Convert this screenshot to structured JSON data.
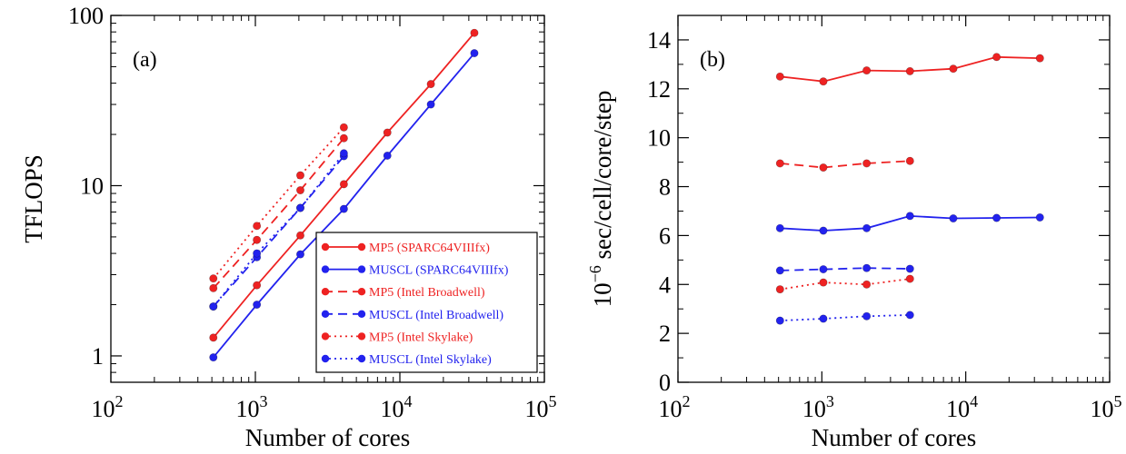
{
  "colors": {
    "mp5": "#ee2222",
    "muscl": "#2222ee",
    "frame": "#000000"
  },
  "chart_data": [
    {
      "type": "line",
      "xscale": "log",
      "yscale": "log",
      "panel_label": "(a)",
      "xlabel": "Number of cores",
      "ylabel": "TFLOPS",
      "xlim": [
        100,
        100000
      ],
      "ylim": [
        0.7,
        100
      ],
      "xticks": [
        {
          "value": 100,
          "base": "10",
          "exp": "2"
        },
        {
          "value": 1000,
          "base": "10",
          "exp": "3"
        },
        {
          "value": 10000,
          "base": "10",
          "exp": "4"
        },
        {
          "value": 100000,
          "base": "10",
          "exp": "5"
        }
      ],
      "yticks": [
        {
          "value": 1,
          "label": "1"
        },
        {
          "value": 10,
          "label": "10"
        },
        {
          "value": 100,
          "label": "100"
        }
      ],
      "legend_position": "bottom-right",
      "series": [
        {
          "name": "MP5 (SPARC64VIIIfx)",
          "color": "#ee2222",
          "style": "solid",
          "x": [
            512,
            1024,
            2048,
            4096,
            8192,
            16384,
            32768
          ],
          "y": [
            1.28,
            2.6,
            5.1,
            10.2,
            20.5,
            39.5,
            79
          ]
        },
        {
          "name": "MUSCL (SPARC64VIIIfx)",
          "color": "#2222ee",
          "style": "solid",
          "x": [
            512,
            1024,
            2048,
            4096,
            8192,
            16384,
            32768
          ],
          "y": [
            0.98,
            2.0,
            3.95,
            7.3,
            15.0,
            30.0,
            60
          ]
        },
        {
          "name": "MP5 (Intel Broadwell)",
          "color": "#ee2222",
          "style": "dashed",
          "x": [
            512,
            1024,
            2048,
            4096
          ],
          "y": [
            2.5,
            4.8,
            9.4,
            19
          ]
        },
        {
          "name": "MUSCL (Intel Broadwell)",
          "color": "#2222ee",
          "style": "dashed",
          "x": [
            512,
            1024,
            2048,
            4096
          ],
          "y": [
            1.95,
            3.8,
            7.4,
            14.9
          ]
        },
        {
          "name": "MP5 (Intel Skylake)",
          "color": "#ee2222",
          "style": "dotted",
          "x": [
            512,
            1024,
            2048,
            4096
          ],
          "y": [
            2.85,
            5.8,
            11.5,
            22
          ]
        },
        {
          "name": "MUSCL (Intel Skylake)",
          "color": "#2222ee",
          "style": "dotted",
          "x": [
            512,
            1024,
            2048,
            4096
          ],
          "y": [
            1.95,
            4.0,
            7.4,
            15.5
          ]
        }
      ]
    },
    {
      "type": "line",
      "xscale": "log",
      "yscale": "linear",
      "panel_label": "(b)",
      "xlabel": "Number of cores",
      "ylabel_base": "10",
      "ylabel_exp": "−6",
      "ylabel_rest": " sec/cell/core/step",
      "xlim": [
        100,
        100000
      ],
      "ylim": [
        0,
        15
      ],
      "xticks": [
        {
          "value": 100,
          "base": "10",
          "exp": "2"
        },
        {
          "value": 1000,
          "base": "10",
          "exp": "3"
        },
        {
          "value": 10000,
          "base": "10",
          "exp": "4"
        },
        {
          "value": 100000,
          "base": "10",
          "exp": "5"
        }
      ],
      "yticks": [
        {
          "value": 0,
          "label": "0"
        },
        {
          "value": 2,
          "label": "2"
        },
        {
          "value": 4,
          "label": "4"
        },
        {
          "value": 6,
          "label": "6"
        },
        {
          "value": 8,
          "label": "8"
        },
        {
          "value": 10,
          "label": "10"
        },
        {
          "value": 12,
          "label": "12"
        },
        {
          "value": 14,
          "label": "14"
        }
      ],
      "series": [
        {
          "color": "#ee2222",
          "style": "solid",
          "x": [
            512,
            1024,
            2048,
            4096,
            8192,
            16384,
            32768
          ],
          "y": [
            12.5,
            12.3,
            12.75,
            12.72,
            12.82,
            13.3,
            13.25
          ]
        },
        {
          "color": "#2222ee",
          "style": "solid",
          "x": [
            512,
            1024,
            2048,
            4096,
            8192,
            16384,
            32768
          ],
          "y": [
            6.3,
            6.2,
            6.3,
            6.8,
            6.7,
            6.72,
            6.74
          ]
        },
        {
          "color": "#ee2222",
          "style": "dashed",
          "x": [
            512,
            1024,
            2048,
            4096
          ],
          "y": [
            8.95,
            8.78,
            8.95,
            9.05
          ]
        },
        {
          "color": "#2222ee",
          "style": "dashed",
          "x": [
            512,
            1024,
            2048,
            4096
          ],
          "y": [
            4.57,
            4.62,
            4.67,
            4.64
          ]
        },
        {
          "color": "#ee2222",
          "style": "dotted",
          "x": [
            512,
            1024,
            2048,
            4096
          ],
          "y": [
            3.8,
            4.08,
            4.0,
            4.23
          ]
        },
        {
          "color": "#2222ee",
          "style": "dotted",
          "x": [
            512,
            1024,
            2048,
            4096
          ],
          "y": [
            2.52,
            2.6,
            2.7,
            2.75
          ]
        }
      ]
    }
  ]
}
